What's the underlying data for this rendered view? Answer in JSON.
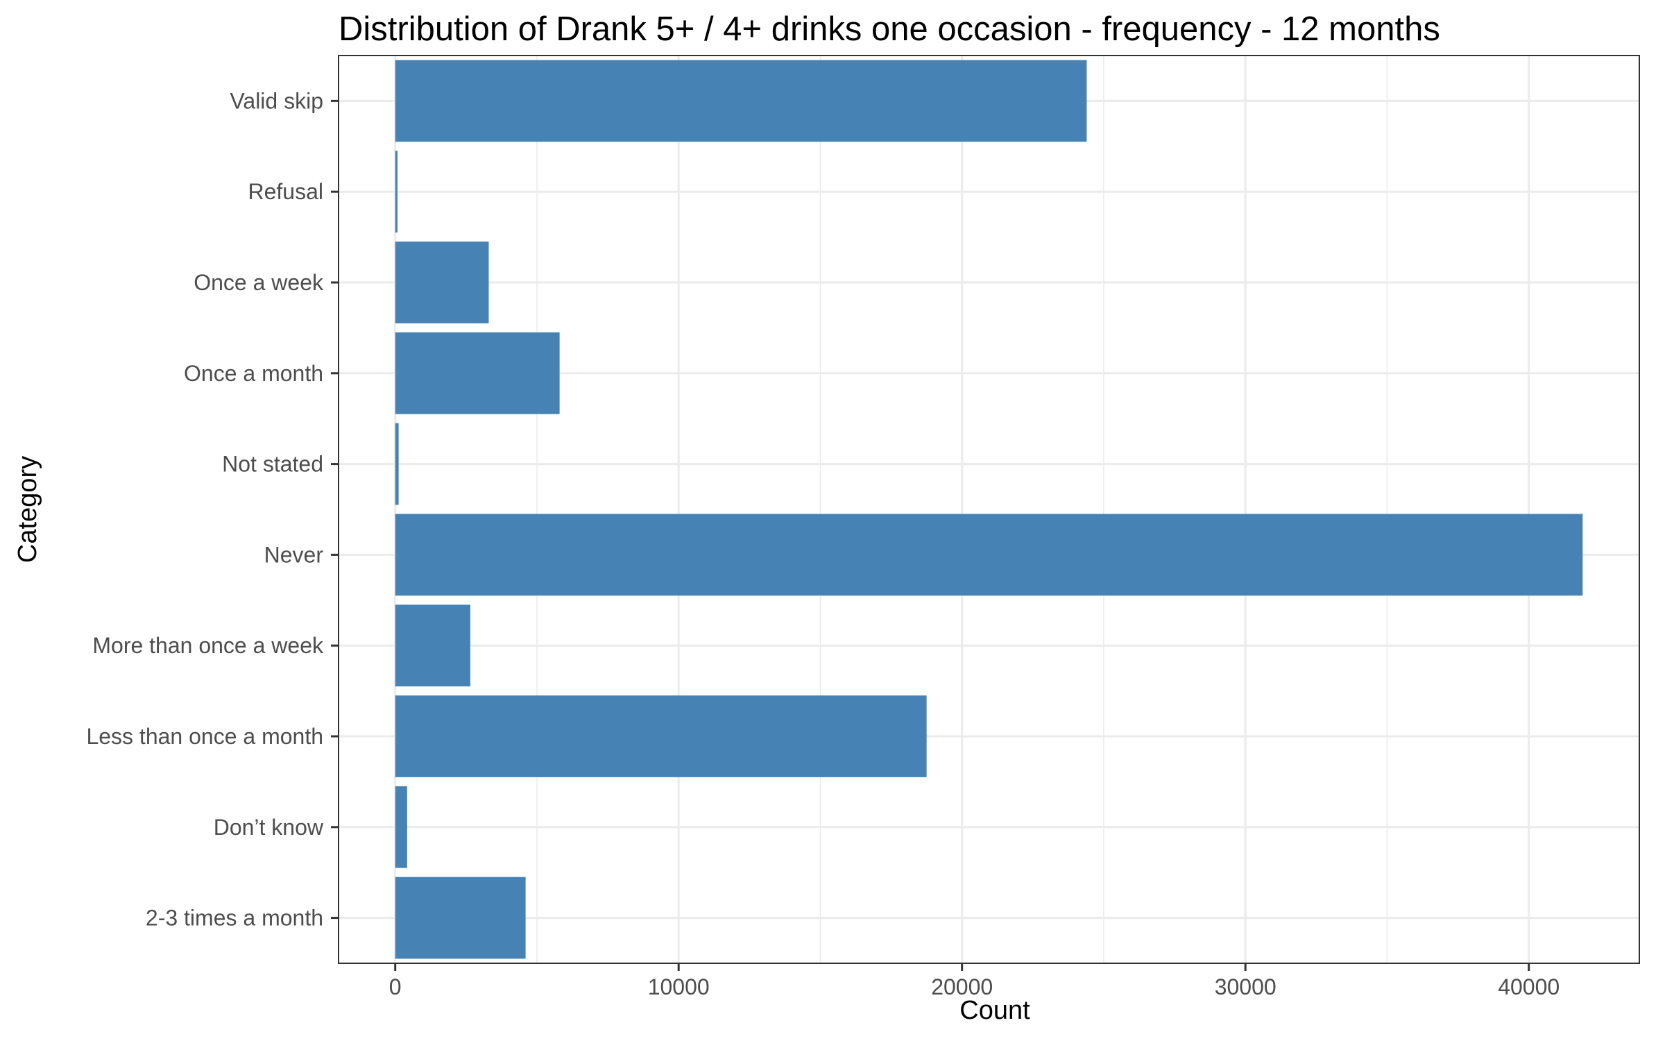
{
  "chart_data": {
    "type": "bar",
    "orientation": "horizontal",
    "title": "Distribution of Drank 5+ / 4+ drinks one occasion - frequency - 12 months",
    "xlabel": "Count",
    "ylabel": "Category",
    "categories": [
      "Valid skip",
      "Refusal",
      "Once a week",
      "Once a month",
      "Not stated",
      "Never",
      "More than once a week",
      "Less than once a month",
      "Don’t know",
      "2-3 times a month"
    ],
    "values": [
      24400,
      80,
      3300,
      5800,
      120,
      41900,
      2650,
      18750,
      420,
      4600
    ],
    "xlim": [
      -2000,
      43900
    ],
    "xticks": [
      0,
      10000,
      20000,
      30000,
      40000
    ],
    "xtick_labels": [
      "0",
      "10000",
      "20000",
      "30000",
      "40000"
    ],
    "grid": true,
    "legend": "none",
    "bar_color": "#4682b4"
  }
}
